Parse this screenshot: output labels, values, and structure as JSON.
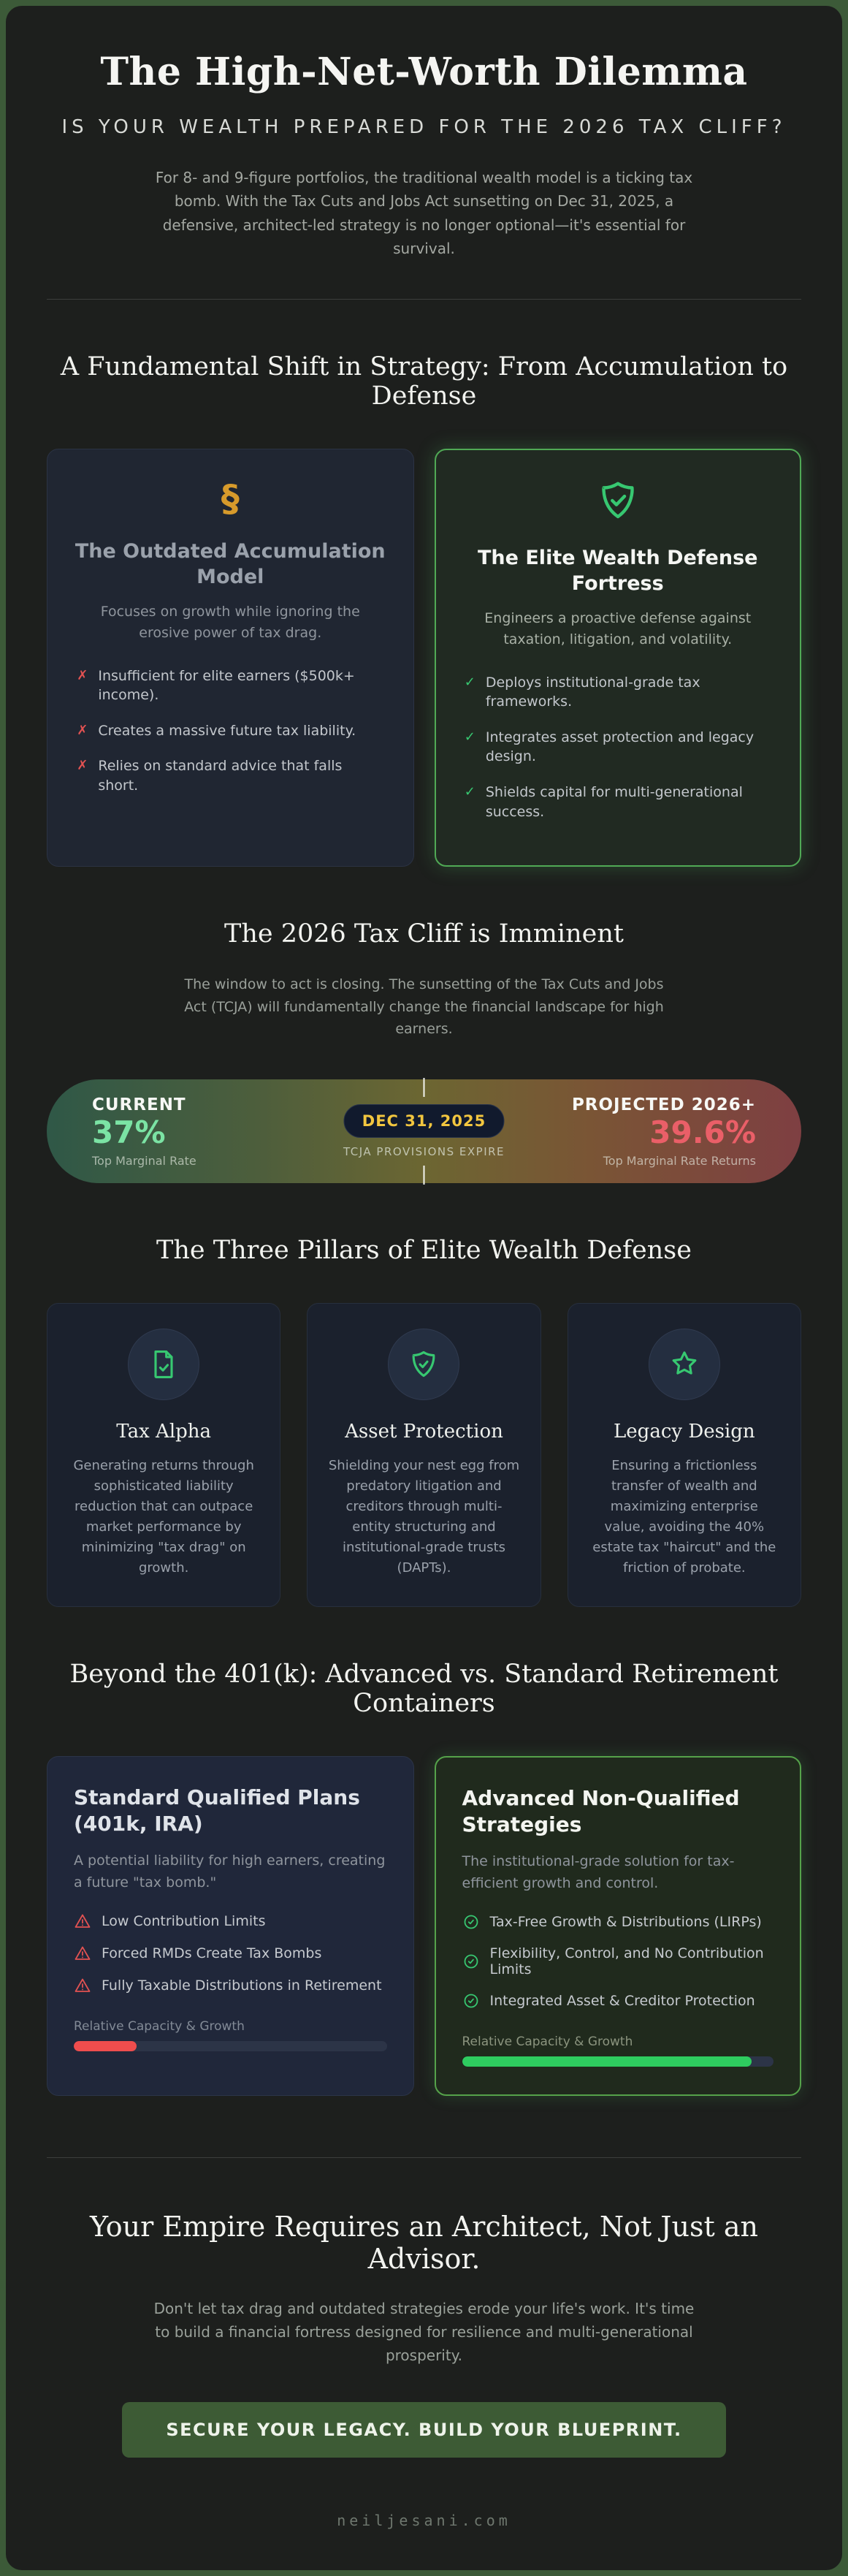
{
  "page": {
    "title": "The High-Net-Worth Dilemma",
    "kicker": "IS YOUR WEALTH PREPARED FOR THE 2026 TAX CLIFF?",
    "intro": "For 8- and 9-figure portfolios, the traditional wealth model is a ticking tax bomb. With the Tax Cuts and Jobs Act sunsetting on Dec 31, 2025, a defensive, architect-led strategy is no longer optional—it's essential for survival.",
    "footer_domain": "neiljesani.com"
  },
  "markers": {
    "cross": "✗",
    "check": "✓"
  },
  "colors": {
    "accent_green": "#37c871",
    "accent_red": "#e25252",
    "accent_amber": "#d79a2b",
    "badge_yellow": "#f2c63f",
    "button_green": "#3d5b35"
  },
  "shift": {
    "heading": "A Fundamental Shift in Strategy: From Accumulation to Defense",
    "outdated": {
      "title": "The Outdated Accumulation Model",
      "subtitle": "Focuses on growth while ignoring the erosive power of tax drag.",
      "items": [
        "Insufficient for elite earners ($500k+ income).",
        "Creates a massive future tax liability.",
        "Relies on standard advice that falls short."
      ]
    },
    "fortress": {
      "title": "The Elite Wealth Defense Fortress",
      "subtitle": "Engineers a proactive defense against taxation, litigation, and volatility.",
      "items": [
        "Deploys institutional-grade tax frameworks.",
        "Integrates asset protection and legacy design.",
        "Shields capital for multi-generational success."
      ]
    }
  },
  "cliff": {
    "heading": "The 2026 Tax Cliff is Imminent",
    "body": "The window to act is closing. The sunsetting of the Tax Cuts and Jobs Act (TCJA) will fundamentally change the financial landscape for high earners.",
    "current_label": "CURRENT",
    "current_value": "37%",
    "current_sub": "Top Marginal Rate",
    "deadline": "DEC 31, 2025",
    "deadline_sub": "TCJA PROVISIONS EXPIRE",
    "projected_label": "PROJECTED 2026+",
    "projected_value": "39.6%",
    "projected_sub": "Top Marginal Rate Returns"
  },
  "pillars": {
    "heading": "The Three Pillars of Elite Wealth Defense",
    "items": [
      {
        "title": "Tax Alpha",
        "body": "Generating returns through sophisticated liability reduction that can outpace market performance by minimizing \"tax drag\" on growth."
      },
      {
        "title": "Asset Protection",
        "body": "Shielding your nest egg from predatory litigation and creditors through multi-entity structuring and institutional-grade trusts (DAPTs)."
      },
      {
        "title": "Legacy Design",
        "body": "Ensuring a frictionless transfer of wealth and maximizing enterprise value, avoiding the 40% estate tax \"haircut\" and the friction of probate."
      }
    ]
  },
  "containers": {
    "heading": "Beyond the 401(k): Advanced vs. Standard Retirement Containers",
    "standard": {
      "title": "Standard Qualified Plans (401k, IRA)",
      "subtitle": "A potential liability for high earners, creating a future \"tax bomb.\"",
      "items": [
        "Low Contribution Limits",
        "Forced RMDs Create Tax Bombs",
        "Fully Taxable Distributions in Retirement"
      ],
      "meter_label": "Relative Capacity & Growth",
      "meter_percent": 20
    },
    "advanced": {
      "title": "Advanced Non-Qualified Strategies",
      "subtitle": "The institutional-grade solution for tax-efficient growth and control.",
      "items": [
        "Tax-Free Growth & Distributions (LIRPs)",
        "Flexibility, Control, and No Contribution Limits",
        "Integrated Asset & Creditor Protection"
      ],
      "meter_label": "Relative Capacity & Growth",
      "meter_percent": 93
    }
  },
  "cta": {
    "heading": "Your Empire Requires an Architect, Not Just an Advisor.",
    "body": "Don't let tax drag and outdated strategies erode your life's work. It's time to build a financial fortress designed for resilience and multi-generational prosperity.",
    "button_label": "SECURE YOUR LEGACY. BUILD YOUR BLUEPRINT."
  }
}
